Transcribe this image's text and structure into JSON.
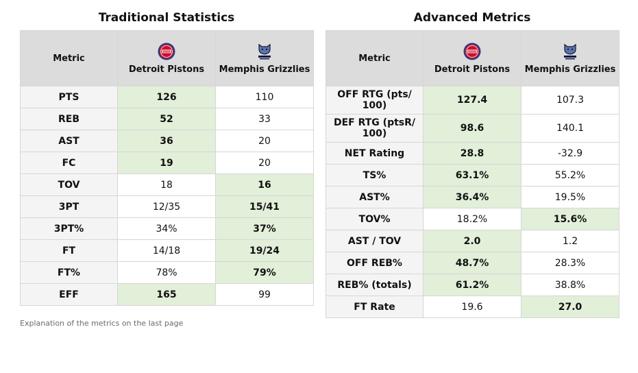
{
  "traditional": {
    "title": "Traditional Statistics",
    "headers": [
      "Metric",
      "Detroit Pistons",
      "Memphis Grizzlies"
    ],
    "rows": [
      {
        "metric": "PTS",
        "det": "126",
        "mem": "110",
        "best": "det"
      },
      {
        "metric": "REB",
        "det": "52",
        "mem": "33",
        "best": "det"
      },
      {
        "metric": "AST",
        "det": "36",
        "mem": "20",
        "best": "det"
      },
      {
        "metric": "FC",
        "det": "19",
        "mem": "20",
        "best": "det"
      },
      {
        "metric": "TOV",
        "det": "18",
        "mem": "16",
        "best": "mem"
      },
      {
        "metric": "3PT",
        "det": "12/35",
        "mem": "15/41",
        "best": "mem"
      },
      {
        "metric": "3PT%",
        "det": "34%",
        "mem": "37%",
        "best": "mem"
      },
      {
        "metric": "FT",
        "det": "14/18",
        "mem": "19/24",
        "best": "mem"
      },
      {
        "metric": "FT%",
        "det": "78%",
        "mem": "79%",
        "best": "mem"
      },
      {
        "metric": "EFF",
        "det": "165",
        "mem": "99",
        "best": "det"
      }
    ]
  },
  "advanced": {
    "title": "Advanced Metrics",
    "headers": [
      "Metric",
      "Detroit Pistons",
      "Memphis Grizzlies"
    ],
    "rows": [
      {
        "metric": "OFF RTG (pts/ 100)",
        "det": "127.4",
        "mem": "107.3",
        "best": "det"
      },
      {
        "metric": "DEF RTG (ptsR/ 100)",
        "det": "98.6",
        "mem": "140.1",
        "best": "det"
      },
      {
        "metric": "NET Rating",
        "det": "28.8",
        "mem": "-32.9",
        "best": "det"
      },
      {
        "metric": "TS%",
        "det": "63.1%",
        "mem": "55.2%",
        "best": "det"
      },
      {
        "metric": "AST%",
        "det": "36.4%",
        "mem": "19.5%",
        "best": "det"
      },
      {
        "metric": "TOV%",
        "det": "18.2%",
        "mem": "15.6%",
        "best": "mem"
      },
      {
        "metric": "AST / TOV",
        "det": "2.0",
        "mem": "1.2",
        "best": "det"
      },
      {
        "metric": "OFF REB%",
        "det": "48.7%",
        "mem": "28.3%",
        "best": "det"
      },
      {
        "metric": "REB% (totals)",
        "det": "61.2%",
        "mem": "38.8%",
        "best": "det"
      },
      {
        "metric": "FT Rate",
        "det": "19.6",
        "mem": "27.0",
        "best": "mem"
      }
    ]
  },
  "logos": {
    "pistons_icon": "pistons-logo-icon",
    "grizzlies_icon": "grizzlies-logo-icon",
    "pistons_text": "DETROIT PISTONS",
    "grizzlies_text": "MEMPHIS GRIZZLIES"
  },
  "colors": {
    "highlight": "#e2efd9",
    "header_bg": "#dcdcdc",
    "metric_bg": "#f4f4f4",
    "pistons_red": "#c8102e",
    "pistons_blue": "#1d428a",
    "grizzlies_navy": "#12173f",
    "grizzlies_blue": "#5d76a9"
  },
  "footnote": "Explanation of the metrics on the last page"
}
